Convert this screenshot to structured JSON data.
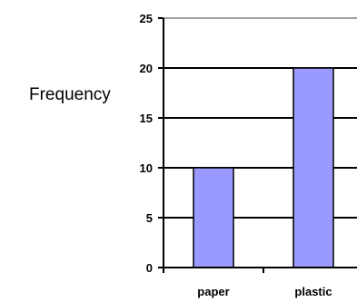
{
  "chart_data": {
    "type": "bar",
    "title": "",
    "xlabel": "",
    "ylabel": "Frequency",
    "categories": [
      "paper",
      "plastic"
    ],
    "values": [
      10,
      20
    ],
    "ylim": [
      0,
      25
    ],
    "yticks": [
      0,
      5,
      10,
      15,
      20,
      25
    ],
    "grid": true,
    "legend": "none",
    "colors": {
      "bar_fill": "#9999ff",
      "bar_stroke": "#000000",
      "grid": "#000000",
      "top_grid": "#808080",
      "axis": "#000000"
    }
  }
}
